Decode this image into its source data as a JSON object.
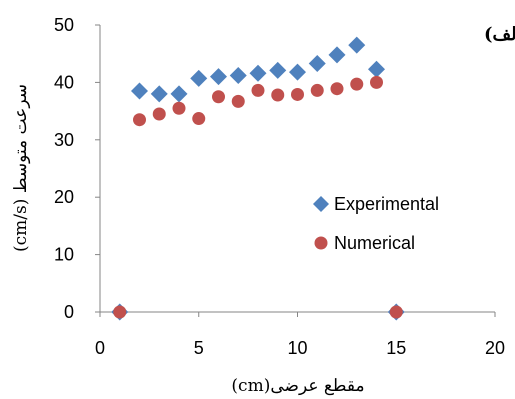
{
  "chart_data": {
    "type": "scatter",
    "panel_label": "(الف)",
    "xlabel": "مقطع عرضی(cm)",
    "ylabel": "سرعت متوسط (cm/s)",
    "xlim": [
      0,
      20
    ],
    "ylim": [
      0,
      50
    ],
    "x_ticks": [
      0,
      5,
      10,
      15,
      20
    ],
    "y_ticks": [
      0,
      10,
      20,
      30,
      40,
      50
    ],
    "x_tick_labels": [
      "0",
      "5",
      "10",
      "15",
      "20"
    ],
    "y_tick_labels": [
      "0",
      "10",
      "20",
      "30",
      "40",
      "50"
    ],
    "grid": false,
    "legend_position": "right",
    "series": [
      {
        "name": "Experimental",
        "marker": "diamond",
        "color": "#4F81BD",
        "x": [
          1,
          2,
          3,
          4,
          5,
          6,
          7,
          8,
          9,
          10,
          11,
          12,
          13,
          14,
          15
        ],
        "y": [
          0,
          38.5,
          38.0,
          38.0,
          40.7,
          41.0,
          41.2,
          41.6,
          42.1,
          41.8,
          43.3,
          44.8,
          46.5,
          42.3,
          0
        ]
      },
      {
        "name": "Numerical",
        "marker": "circle",
        "color": "#C0504D",
        "x": [
          1,
          2,
          3,
          4,
          5,
          6,
          7,
          8,
          9,
          10,
          11,
          12,
          13,
          14,
          15
        ],
        "y": [
          0,
          33.5,
          34.5,
          35.5,
          33.7,
          37.5,
          36.7,
          38.6,
          37.8,
          37.9,
          38.6,
          38.9,
          39.7,
          40.0,
          0
        ]
      }
    ]
  }
}
